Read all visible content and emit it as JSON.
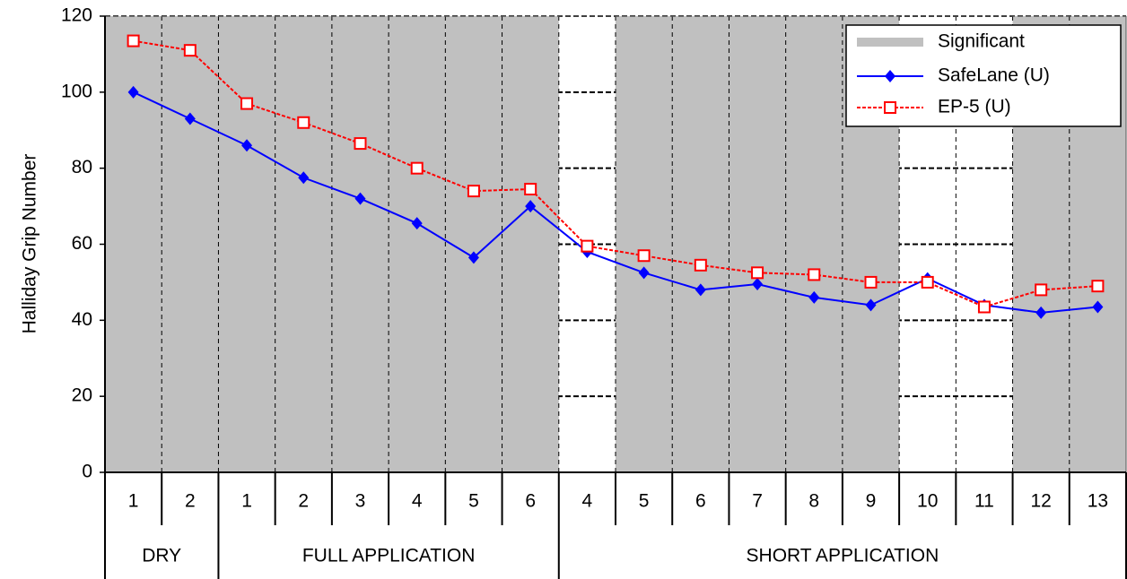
{
  "chart_data": {
    "type": "line",
    "y_label": "Halliday Grip Number",
    "ylim": [
      0,
      120
    ],
    "yticks": [
      0,
      20,
      40,
      60,
      80,
      100,
      120
    ],
    "grid": true,
    "legend": "upper right",
    "groups": [
      {
        "label": "DRY",
        "categories": [
          "1",
          "2"
        ]
      },
      {
        "label": "FULL APPLICATION",
        "categories": [
          "1",
          "2",
          "3",
          "4",
          "5",
          "6"
        ]
      },
      {
        "label": "SHORT APPLICATION",
        "categories": [
          "4",
          "5",
          "6",
          "7",
          "8",
          "9",
          "10",
          "11",
          "12",
          "13"
        ]
      }
    ],
    "significant": {
      "name": "Significant",
      "color": "#c0c0c0",
      "flags": [
        1,
        1,
        1,
        1,
        1,
        1,
        1,
        1,
        0,
        1,
        1,
        1,
        1,
        1,
        0,
        0,
        1,
        1
      ]
    },
    "series": [
      {
        "name": "SafeLane (U)",
        "color": "#0000ff",
        "values": [
          100,
          93,
          86,
          77.5,
          72,
          65.5,
          56.5,
          70,
          58,
          52.5,
          48,
          49.5,
          46,
          44,
          51,
          44,
          42,
          43.5
        ]
      },
      {
        "name": "EP-5 (U)",
        "color": "#ff0000",
        "values": [
          113.5,
          111,
          97,
          92,
          86.5,
          80,
          74,
          74.5,
          59.5,
          57,
          54.5,
          52.5,
          52,
          50,
          50,
          43.5,
          48,
          49
        ]
      }
    ]
  }
}
